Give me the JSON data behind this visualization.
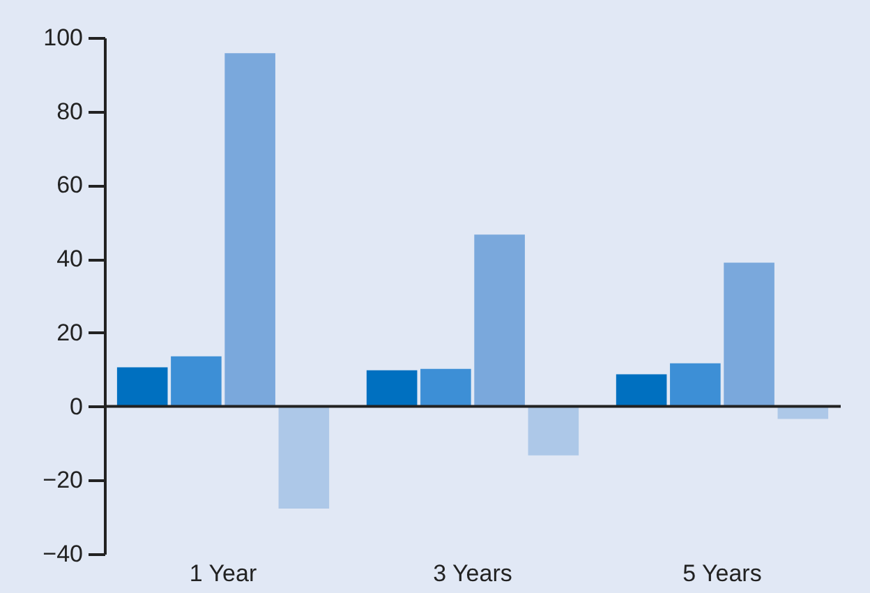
{
  "chart_data": {
    "type": "bar",
    "categories": [
      "1 Year",
      "3 Years",
      "5 Years"
    ],
    "series": [
      {
        "color": "#0070c0",
        "values": [
          10.6,
          9.8,
          8.7
        ]
      },
      {
        "color": "#3d8fd6",
        "values": [
          13.6,
          10.2,
          11.7
        ]
      },
      {
        "color": "#7aa8dc",
        "values": [
          95.8,
          46.6,
          39
        ]
      },
      {
        "color": "#adc8e8",
        "values": [
          -27.7,
          -13.3,
          -3.4
        ]
      }
    ],
    "ylim": [
      -40,
      100
    ],
    "yticks": [
      -40,
      -20,
      0,
      20,
      40,
      60,
      80,
      100
    ],
    "grid": false,
    "legend": false,
    "ref_lines": [
      {
        "axis": "y",
        "value": 0
      }
    ]
  }
}
